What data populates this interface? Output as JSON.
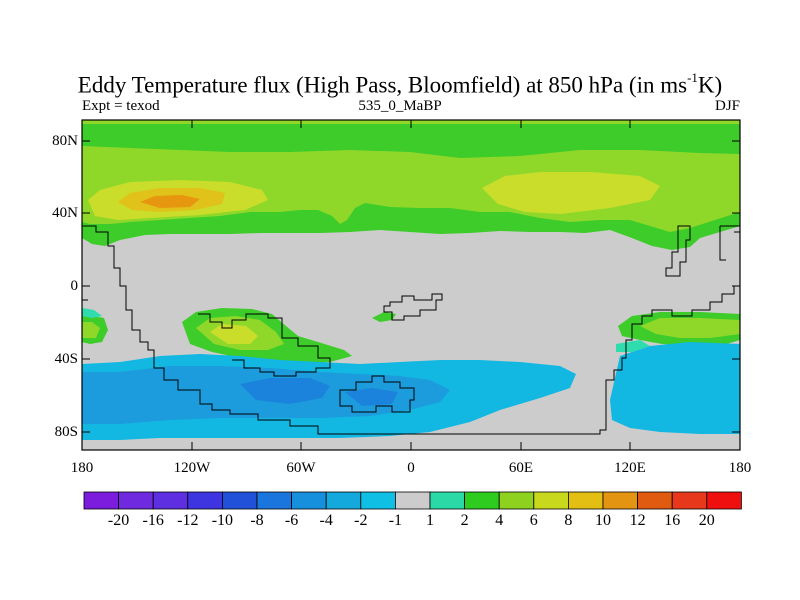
{
  "title": {
    "main": "Eddy Temperature flux (High Pass, Bloomfield) at 850 hPa (in ms",
    "superscript": "-1",
    "tail": "K)"
  },
  "subtitle": {
    "left": "Expt = texod",
    "center": "535_0_MaBP",
    "right": "DJF"
  },
  "axes": {
    "y_ticks": [
      "80N",
      "40N",
      "0",
      "40S",
      "80S"
    ],
    "x_ticks": [
      "180",
      "120W",
      "60W",
      "0",
      "60E",
      "120E",
      "180"
    ]
  },
  "colorbar": {
    "labels": [
      "-20",
      "-16",
      "-12",
      "-10",
      "-8",
      "-6",
      "-4",
      "-2",
      "-1",
      "1",
      "2",
      "4",
      "6",
      "8",
      "10",
      "12",
      "16",
      "20"
    ],
    "colors": [
      "#7c1ddd",
      "#6f2adf",
      "#5d2fe0",
      "#3f35e0",
      "#2251d9",
      "#1a76dc",
      "#1690dc",
      "#14a9dd",
      "#10bfe4",
      "#cccccc",
      "#2ad9a6",
      "#2dcc1e",
      "#8ed21f",
      "#c8d81c",
      "#e3bf14",
      "#e39512",
      "#e05a10",
      "#e8381c",
      "#f00f0f"
    ]
  },
  "palette": {
    "ocean_gray": "#cccccc",
    "green": "#3dcc2a",
    "light_green": "#8fd82a",
    "yellow_green": "#c9dd2a",
    "yellow": "#e0c21a",
    "orange": "#e6960f",
    "teal": "#2fdcad",
    "cyan": "#12b8e2",
    "sky_blue": "#1c9cdd",
    "blue": "#1c83dc"
  }
}
